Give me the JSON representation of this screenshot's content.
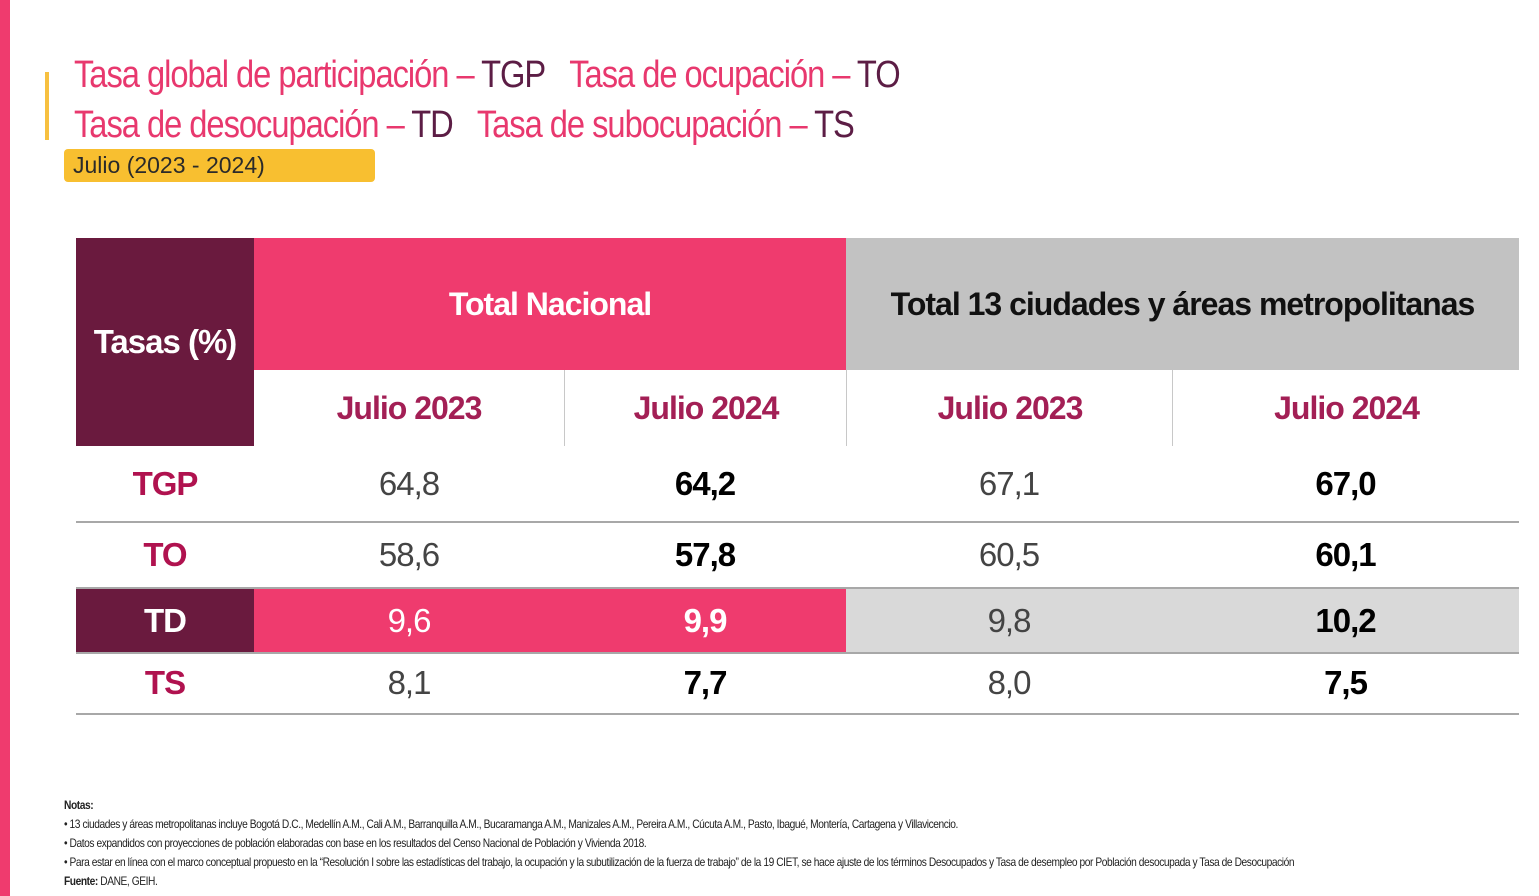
{
  "title": {
    "line1": [
      {
        "text": "Tasa global de participación – ",
        "style": "pink"
      },
      {
        "text": "TGP",
        "style": "dark"
      },
      {
        "text": "Tasa de ocupación – ",
        "style": "pink"
      },
      {
        "text": "TO",
        "style": "dark"
      }
    ],
    "line2": [
      {
        "text": "Tasa de desocupación – ",
        "style": "pink"
      },
      {
        "text": "TD",
        "style": "dark"
      },
      {
        "text": "Tasa de subocupación – ",
        "style": "pink"
      },
      {
        "text": "TS",
        "style": "dark"
      }
    ]
  },
  "period_badge": "Julio (2023 - 2024)",
  "table": {
    "corner_header": "Tasas (%)",
    "group_headers": [
      "Total Nacional",
      "Total 13 ciudades y áreas metropolitanas"
    ],
    "sub_headers": [
      "Julio 2023",
      "Julio 2024",
      "Julio 2023",
      "Julio 2024"
    ],
    "rows": [
      {
        "label": "TGP",
        "values": [
          "64,8",
          "64,2",
          "67,1",
          "67,0"
        ]
      },
      {
        "label": "TO",
        "values": [
          "58,6",
          "57,8",
          "60,5",
          "60,1"
        ]
      },
      {
        "label": "TD",
        "values": [
          "9,6",
          "9,9",
          "9,8",
          "10,2"
        ]
      },
      {
        "label": "TS",
        "values": [
          "8,1",
          "7,7",
          "8,0",
          "7,5"
        ]
      }
    ]
  },
  "notes": {
    "heading": "Notas:",
    "items": [
      "• 13 ciudades y áreas metropolitanas incluye Bogotá D.C., Medellín A.M., Cali A.M., Barranquilla A.M., Bucaramanga A.M., Manizales A.M., Pereira A.M., Cúcuta A.M., Pasto, Ibagué, Montería, Cartagena y Villavicencio.",
      "• Datos expandidos con proyecciones de población elaboradas con base en los resultados del Censo Nacional de Población y Vivienda 2018.",
      "• Para estar en línea con el marco conceptual propuesto en la “Resolución I sobre las estadísticas del trabajo, la ocupación y la subutilización de la fuerza de trabajo” de la 19 CIET, se hace ajuste de los términos Desocupados y Tasa de desempleo por Población desocupada y Tasa de Desocupación"
    ],
    "source_label": "Fuente:",
    "source_value": " DANE, GEIH."
  },
  "colors": {
    "brand_pink": "#ef3b6e",
    "brand_dark": "#6a1a3e",
    "accent_yellow": "#f8bf30",
    "grey_header": "#c2c2c2"
  }
}
